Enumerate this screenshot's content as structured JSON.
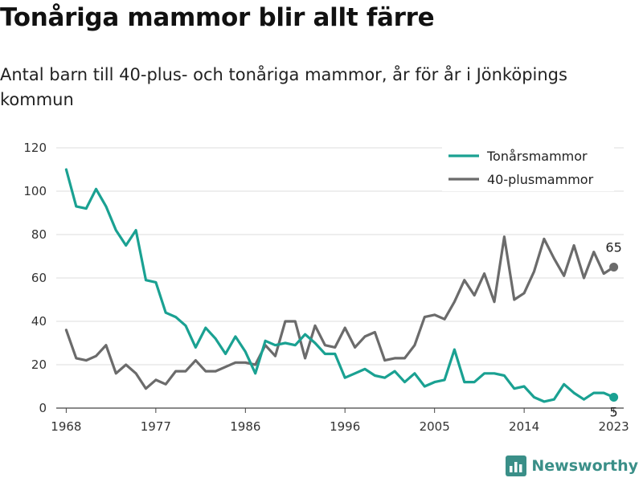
{
  "title": "Tonåriga mammor blir allt färre",
  "subtitle": "Antal barn till 40-plus- och tonåriga mammor, år för år i Jönköpings kommun",
  "brand": {
    "name": "Newsworthy",
    "color": "#3a8f88"
  },
  "chart_data": {
    "type": "line",
    "title": "Tonåriga mammor blir allt färre",
    "xlabel": "",
    "ylabel": "",
    "xlim": [
      1967,
      2024
    ],
    "ylim": [
      0,
      120
    ],
    "xticks": [
      1968,
      1977,
      1986,
      1996,
      2005,
      2014,
      2023
    ],
    "yticks": [
      0,
      20,
      40,
      60,
      80,
      100,
      120
    ],
    "grid": true,
    "legend_position": "top-right",
    "x": [
      1968,
      1969,
      1970,
      1971,
      1972,
      1973,
      1974,
      1975,
      1976,
      1977,
      1978,
      1979,
      1980,
      1981,
      1982,
      1983,
      1984,
      1985,
      1986,
      1987,
      1988,
      1989,
      1990,
      1991,
      1992,
      1993,
      1994,
      1995,
      1996,
      1997,
      1998,
      1999,
      2000,
      2001,
      2002,
      2003,
      2004,
      2005,
      2006,
      2007,
      2008,
      2009,
      2010,
      2011,
      2012,
      2013,
      2014,
      2015,
      2016,
      2017,
      2018,
      2019,
      2020,
      2021,
      2022,
      2023
    ],
    "series": [
      {
        "name": "Tonårsmammor",
        "color": "#1aa192",
        "values": [
          110,
          93,
          92,
          101,
          93,
          82,
          75,
          82,
          59,
          58,
          44,
          42,
          38,
          28,
          37,
          32,
          25,
          33,
          26,
          16,
          31,
          29,
          30,
          29,
          34,
          30,
          25,
          25,
          14,
          16,
          18,
          15,
          14,
          17,
          12,
          16,
          10,
          12,
          13,
          27,
          12,
          12,
          16,
          16,
          15,
          9,
          10,
          5,
          3,
          4,
          11,
          7,
          4,
          7,
          7,
          5
        ],
        "end_label": "5"
      },
      {
        "name": "40-plusmammor",
        "color": "#6b6b6b",
        "values": [
          36,
          23,
          22,
          24,
          29,
          16,
          20,
          16,
          9,
          13,
          11,
          17,
          17,
          22,
          17,
          17,
          19,
          21,
          21,
          20,
          29,
          24,
          40,
          40,
          23,
          38,
          29,
          28,
          37,
          28,
          33,
          35,
          22,
          23,
          23,
          29,
          42,
          43,
          41,
          49,
          59,
          52,
          62,
          49,
          79,
          50,
          53,
          63,
          78,
          69,
          61,
          75,
          60,
          72,
          62,
          65
        ],
        "end_label": "65"
      }
    ]
  }
}
